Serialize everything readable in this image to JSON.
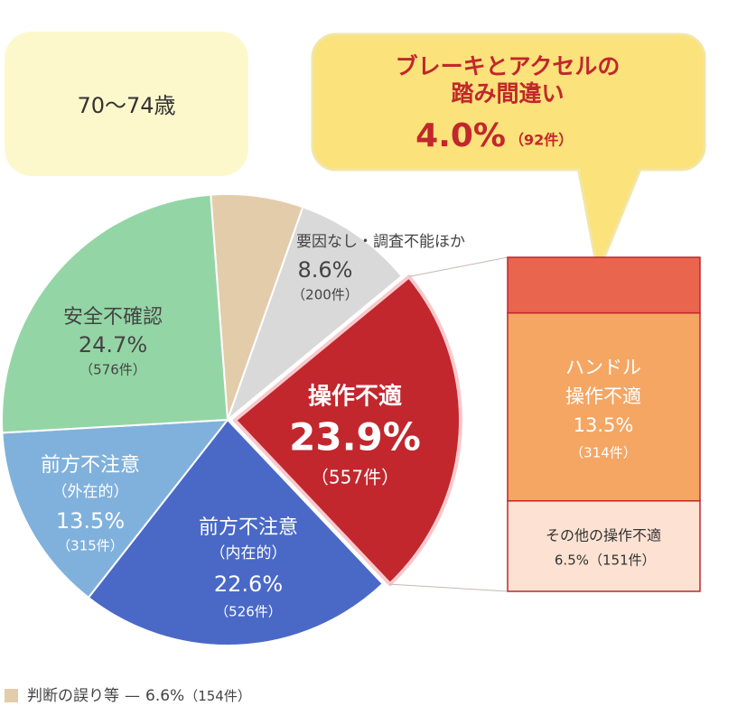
{
  "chart_data": {
    "type": "pie-of-bar",
    "title": "70〜74歳",
    "categories": [
      [
        "判断の誤り等"
      ],
      [
        "要因なし・調査不能ほか"
      ],
      [
        "操作不適"
      ],
      [
        "前方不注意",
        "（内在的）"
      ],
      [
        "前方不注意",
        "（外在的）"
      ],
      [
        "安全不確認"
      ]
    ],
    "values": [
      6.6,
      8.6,
      23.9,
      22.6,
      13.5,
      24.7
    ],
    "value_labels": [
      "6.6%",
      "8.6%",
      "23.9%",
      "22.6%",
      "13.5%",
      "24.7%"
    ],
    "count_labels": [
      "（154件）",
      "（200件）",
      "（557件）",
      "（526件）",
      "（315件）",
      "（576件）"
    ],
    "colors": [
      "#e3cca9",
      "#d9d9d9",
      "#c1272d",
      "#4a69c6",
      "#80b1dc",
      "#94d5a5"
    ],
    "exploded": "操作不適",
    "legend_separator": "—",
    "bar": {
      "categories": [
        [
          "ブレーキとアクセルの",
          "踏み間違い"
        ],
        [
          "ハンドル",
          "操作不適"
        ],
        [
          "その他の操作不適"
        ]
      ],
      "values": [
        4.0,
        13.5,
        6.5
      ],
      "value_labels": [
        "4.0%",
        "13.5%",
        "6.5%"
      ],
      "count_labels": [
        "（92件）",
        "（314件）",
        "（151件）"
      ],
      "colors": [
        "#e9654e",
        "#f5a663",
        "#fde2d3"
      ]
    }
  }
}
